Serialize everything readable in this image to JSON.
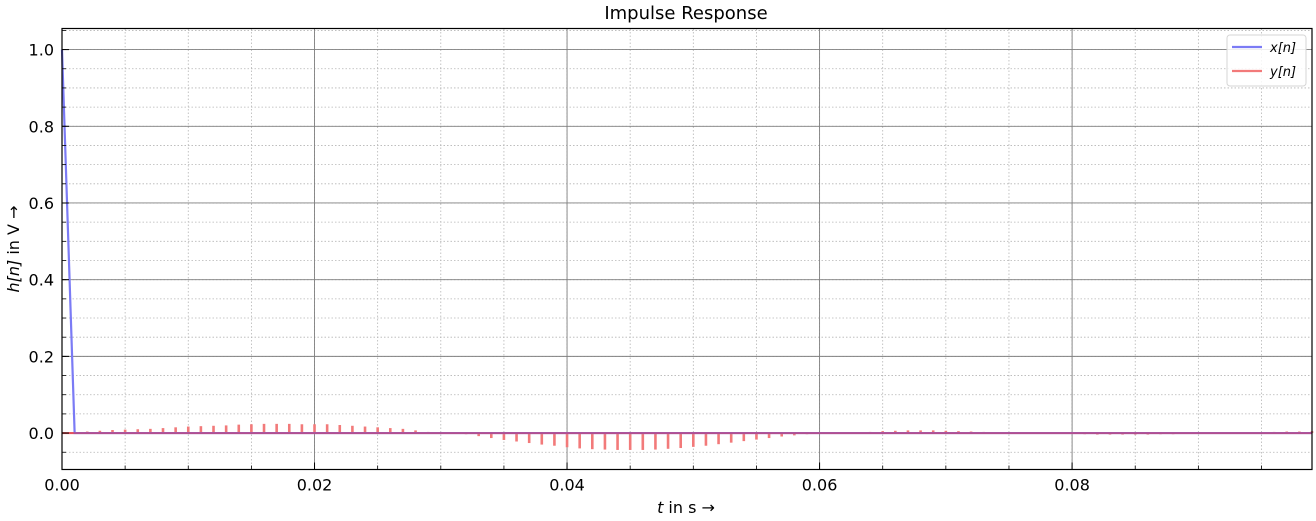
{
  "chart_data": {
    "type": "line",
    "title": "Impulse Response",
    "xlabel_var": "t",
    "xlabel_rest": " in s →",
    "ylabel_var": "h[n]",
    "ylabel_rest": " in V →",
    "xlim": [
      0.0,
      0.099
    ],
    "ylim": [
      -0.095,
      1.055
    ],
    "x_ticks": [
      0.0,
      0.02,
      0.04,
      0.06,
      0.08
    ],
    "x_tick_labels": [
      "0.00",
      "0.02",
      "0.04",
      "0.06",
      "0.08"
    ],
    "y_ticks": [
      0.0,
      0.2,
      0.4,
      0.6,
      0.8,
      1.0
    ],
    "y_tick_labels": [
      "0.0",
      "0.2",
      "0.4",
      "0.6",
      "0.8",
      "1.0"
    ],
    "grid": true,
    "legend_position": "top-right",
    "series": [
      {
        "name": "x[n]",
        "color": "#7b7bf5",
        "x": [
          0.0,
          0.001,
          0.099
        ],
        "y": [
          1.0,
          0.0,
          0.0
        ]
      },
      {
        "name": "y[n]",
        "color": "#f27a7a",
        "x": [
          0.0,
          0.001,
          0.002,
          0.003,
          0.004,
          0.005,
          0.006,
          0.007,
          0.008,
          0.009,
          0.01,
          0.011,
          0.012,
          0.013,
          0.014,
          0.015,
          0.016,
          0.017,
          0.018,
          0.019,
          0.02,
          0.021,
          0.022,
          0.023,
          0.024,
          0.025,
          0.026,
          0.027,
          0.028,
          0.029,
          0.03,
          0.031,
          0.032,
          0.033,
          0.034,
          0.035,
          0.036,
          0.037,
          0.038,
          0.039,
          0.04,
          0.041,
          0.042,
          0.043,
          0.044,
          0.045,
          0.046,
          0.047,
          0.048,
          0.049,
          0.05,
          0.051,
          0.052,
          0.053,
          0.054,
          0.055,
          0.056,
          0.057,
          0.058,
          0.059,
          0.06,
          0.061,
          0.062,
          0.063,
          0.064,
          0.065,
          0.066,
          0.067,
          0.068,
          0.069,
          0.07,
          0.071,
          0.072,
          0.073,
          0.074,
          0.075,
          0.076,
          0.077,
          0.078,
          0.079,
          0.08,
          0.081,
          0.082,
          0.083,
          0.084,
          0.085,
          0.086,
          0.087,
          0.088,
          0.089,
          0.09,
          0.091,
          0.092,
          0.093,
          0.094,
          0.095,
          0.096,
          0.097,
          0.098,
          0.099
        ],
        "y": [
          0.0,
          0.002,
          0.004,
          0.006,
          0.008,
          0.009,
          0.01,
          0.011,
          0.013,
          0.015,
          0.017,
          0.018,
          0.019,
          0.02,
          0.022,
          0.023,
          0.024,
          0.024,
          0.024,
          0.023,
          0.023,
          0.023,
          0.021,
          0.019,
          0.017,
          0.015,
          0.013,
          0.011,
          0.007,
          0.003,
          0.0,
          0.0,
          -0.003,
          -0.008,
          -0.013,
          -0.018,
          -0.022,
          -0.026,
          -0.03,
          -0.033,
          -0.037,
          -0.04,
          -0.042,
          -0.043,
          -0.044,
          -0.044,
          -0.044,
          -0.043,
          -0.041,
          -0.039,
          -0.036,
          -0.033,
          -0.029,
          -0.025,
          -0.021,
          -0.017,
          -0.013,
          -0.009,
          -0.006,
          -0.003,
          0.0,
          0.0,
          0.001,
          0.002,
          0.003,
          0.005,
          0.006,
          0.007,
          0.007,
          0.007,
          0.006,
          0.005,
          0.004,
          0.003,
          0.002,
          0.001,
          0.0,
          0.0,
          0.0,
          0.0,
          -0.002,
          -0.003,
          -0.004,
          -0.004,
          -0.004,
          -0.004,
          -0.004,
          -0.003,
          -0.003,
          -0.002,
          -0.001,
          0.0,
          0.0,
          0.0,
          0.001,
          0.002,
          0.003,
          0.004,
          0.004,
          0.005
        ]
      }
    ]
  }
}
